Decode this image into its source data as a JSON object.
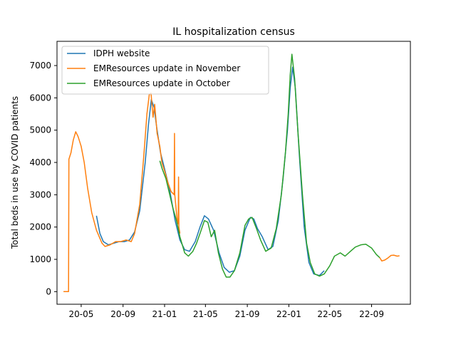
{
  "chart_data": {
    "type": "line",
    "title": "IL hospitalization census",
    "xlabel": "",
    "ylabel": "Total beds in use by COVID patients",
    "x_tick_labels": [
      "20-05",
      "20-09",
      "21-01",
      "21-05",
      "21-09",
      "22-01",
      "22-05",
      "22-09"
    ],
    "x_tick_dates": [
      "2020-05-01",
      "2020-09-01",
      "2021-01-01",
      "2021-05-01",
      "2021-09-01",
      "2022-01-01",
      "2022-05-01",
      "2022-09-01"
    ],
    "xlim": [
      "2020-02-20",
      "2022-12-24"
    ],
    "y_ticks": [
      0,
      1000,
      2000,
      3000,
      4000,
      5000,
      6000,
      7000
    ],
    "ylim": [
      -390,
      7750
    ],
    "grid": false,
    "legend_position": "upper-left",
    "series": [
      {
        "name": "IDPH website",
        "color": "#1f77b4",
        "points": [
          [
            "2020-06-15",
            2350
          ],
          [
            "2020-06-25",
            1800
          ],
          [
            "2020-07-05",
            1550
          ],
          [
            "2020-07-20",
            1450
          ],
          [
            "2020-08-05",
            1500
          ],
          [
            "2020-08-20",
            1550
          ],
          [
            "2020-09-05",
            1550
          ],
          [
            "2020-09-20",
            1600
          ],
          [
            "2020-10-05",
            1850
          ],
          [
            "2020-10-20",
            2500
          ],
          [
            "2020-11-05",
            4000
          ],
          [
            "2020-11-15",
            5200
          ],
          [
            "2020-11-23",
            5950
          ],
          [
            "2020-12-01",
            5700
          ],
          [
            "2020-12-10",
            5000
          ],
          [
            "2020-12-20",
            4300
          ],
          [
            "2021-01-01",
            3800
          ],
          [
            "2021-01-15",
            3200
          ],
          [
            "2021-02-01",
            2200
          ],
          [
            "2021-02-15",
            1600
          ],
          [
            "2021-03-01",
            1300
          ],
          [
            "2021-03-15",
            1250
          ],
          [
            "2021-04-01",
            1550
          ],
          [
            "2021-04-15",
            2000
          ],
          [
            "2021-04-28",
            2350
          ],
          [
            "2021-05-10",
            2250
          ],
          [
            "2021-05-25",
            1900
          ],
          [
            "2021-06-10",
            1200
          ],
          [
            "2021-06-25",
            750
          ],
          [
            "2021-07-10",
            600
          ],
          [
            "2021-07-25",
            650
          ],
          [
            "2021-08-10",
            1100
          ],
          [
            "2021-08-25",
            1900
          ],
          [
            "2021-09-10",
            2300
          ],
          [
            "2021-09-20",
            2250
          ],
          [
            "2021-10-01",
            1950
          ],
          [
            "2021-10-15",
            1700
          ],
          [
            "2021-11-01",
            1300
          ],
          [
            "2021-11-15",
            1400
          ],
          [
            "2021-12-01",
            2200
          ],
          [
            "2021-12-15",
            3500
          ],
          [
            "2021-12-28",
            5000
          ],
          [
            "2022-01-05",
            6300
          ],
          [
            "2022-01-12",
            6950
          ],
          [
            "2022-01-20",
            6300
          ],
          [
            "2022-02-01",
            4200
          ],
          [
            "2022-02-15",
            2000
          ],
          [
            "2022-03-01",
            900
          ],
          [
            "2022-03-15",
            550
          ],
          [
            "2022-04-01",
            500
          ],
          [
            "2022-04-15",
            650
          ]
        ]
      },
      {
        "name": "EMResources update in November",
        "color": "#ff7f0e",
        "points": [
          [
            "2020-03-10",
            0
          ],
          [
            "2020-03-25",
            0
          ],
          [
            "2020-03-26",
            4100
          ],
          [
            "2020-04-01",
            4300
          ],
          [
            "2020-04-08",
            4700
          ],
          [
            "2020-04-15",
            4950
          ],
          [
            "2020-04-22",
            4800
          ],
          [
            "2020-05-01",
            4500
          ],
          [
            "2020-05-10",
            4000
          ],
          [
            "2020-05-20",
            3200
          ],
          [
            "2020-06-01",
            2450
          ],
          [
            "2020-06-15",
            1900
          ],
          [
            "2020-07-01",
            1500
          ],
          [
            "2020-07-10",
            1400
          ],
          [
            "2020-07-25",
            1450
          ],
          [
            "2020-08-10",
            1550
          ],
          [
            "2020-08-25",
            1550
          ],
          [
            "2020-09-10",
            1600
          ],
          [
            "2020-09-25",
            1550
          ],
          [
            "2020-10-05",
            1800
          ],
          [
            "2020-10-20",
            2700
          ],
          [
            "2020-11-01",
            4200
          ],
          [
            "2020-11-10",
            5500
          ],
          [
            "2020-11-17",
            6100
          ],
          [
            "2020-11-22",
            6150
          ],
          [
            "2020-11-28",
            5400
          ],
          [
            "2020-12-03",
            5800
          ],
          [
            "2020-12-10",
            4900
          ],
          [
            "2020-12-18",
            4500
          ],
          [
            "2020-12-24",
            4000
          ],
          [
            "2021-01-02",
            3700
          ],
          [
            "2021-01-10",
            3400
          ],
          [
            "2021-01-20",
            3100
          ],
          [
            "2021-01-29",
            3000
          ],
          [
            "2021-01-30",
            4900
          ],
          [
            "2021-01-31",
            3000
          ],
          [
            "2021-02-07",
            2200
          ],
          [
            "2021-02-10",
            2100
          ],
          [
            "2021-02-11",
            3550
          ],
          [
            "2021-02-12",
            2000
          ],
          [
            "2021-02-15",
            1800
          ]
        ]
      },
      {
        "name": "EMResources update in October",
        "color": "#2ca02c",
        "points": [
          [
            "2020-12-18",
            4050
          ],
          [
            "2020-12-25",
            3800
          ],
          [
            "2021-01-05",
            3500
          ],
          [
            "2021-01-15",
            3050
          ],
          [
            "2021-01-25",
            2600
          ],
          [
            "2021-02-05",
            2200
          ],
          [
            "2021-02-15",
            1700
          ],
          [
            "2021-03-01",
            1200
          ],
          [
            "2021-03-12",
            1100
          ],
          [
            "2021-03-25",
            1250
          ],
          [
            "2021-04-05",
            1500
          ],
          [
            "2021-04-15",
            1800
          ],
          [
            "2021-04-28",
            2200
          ],
          [
            "2021-05-08",
            2150
          ],
          [
            "2021-05-18",
            1700
          ],
          [
            "2021-05-28",
            1900
          ],
          [
            "2021-06-08",
            1200
          ],
          [
            "2021-06-20",
            700
          ],
          [
            "2021-07-01",
            450
          ],
          [
            "2021-07-12",
            450
          ],
          [
            "2021-07-25",
            650
          ],
          [
            "2021-08-10",
            1200
          ],
          [
            "2021-08-25",
            2050
          ],
          [
            "2021-09-05",
            2250
          ],
          [
            "2021-09-15",
            2300
          ],
          [
            "2021-09-28",
            1950
          ],
          [
            "2021-10-10",
            1600
          ],
          [
            "2021-10-25",
            1250
          ],
          [
            "2021-11-10",
            1350
          ],
          [
            "2021-11-25",
            1950
          ],
          [
            "2021-12-10",
            3000
          ],
          [
            "2021-12-22",
            4300
          ],
          [
            "2021-12-30",
            5500
          ],
          [
            "2022-01-05",
            6700
          ],
          [
            "2022-01-10",
            7350
          ],
          [
            "2022-01-18",
            6600
          ],
          [
            "2022-01-28",
            4900
          ],
          [
            "2022-02-10",
            3000
          ],
          [
            "2022-02-22",
            1500
          ],
          [
            "2022-03-05",
            900
          ],
          [
            "2022-03-18",
            550
          ],
          [
            "2022-04-01",
            480
          ],
          [
            "2022-04-15",
            550
          ],
          [
            "2022-05-01",
            800
          ],
          [
            "2022-05-15",
            1100
          ],
          [
            "2022-06-01",
            1200
          ],
          [
            "2022-06-15",
            1100
          ],
          [
            "2022-07-01",
            1250
          ],
          [
            "2022-07-15",
            1380
          ],
          [
            "2022-08-01",
            1450
          ],
          [
            "2022-08-15",
            1470
          ],
          [
            "2022-09-01",
            1350
          ],
          [
            "2022-09-15",
            1150
          ],
          [
            "2022-09-25",
            1050
          ]
        ]
      },
      {
        "name": "",
        "color": "#ff7f0e",
        "points": [
          [
            "2022-09-25",
            1050
          ],
          [
            "2022-10-01",
            950
          ],
          [
            "2022-10-10",
            980
          ],
          [
            "2022-10-20",
            1050
          ],
          [
            "2022-10-28",
            1120
          ],
          [
            "2022-11-05",
            1130
          ],
          [
            "2022-11-15",
            1100
          ],
          [
            "2022-11-22",
            1110
          ]
        ]
      }
    ]
  }
}
